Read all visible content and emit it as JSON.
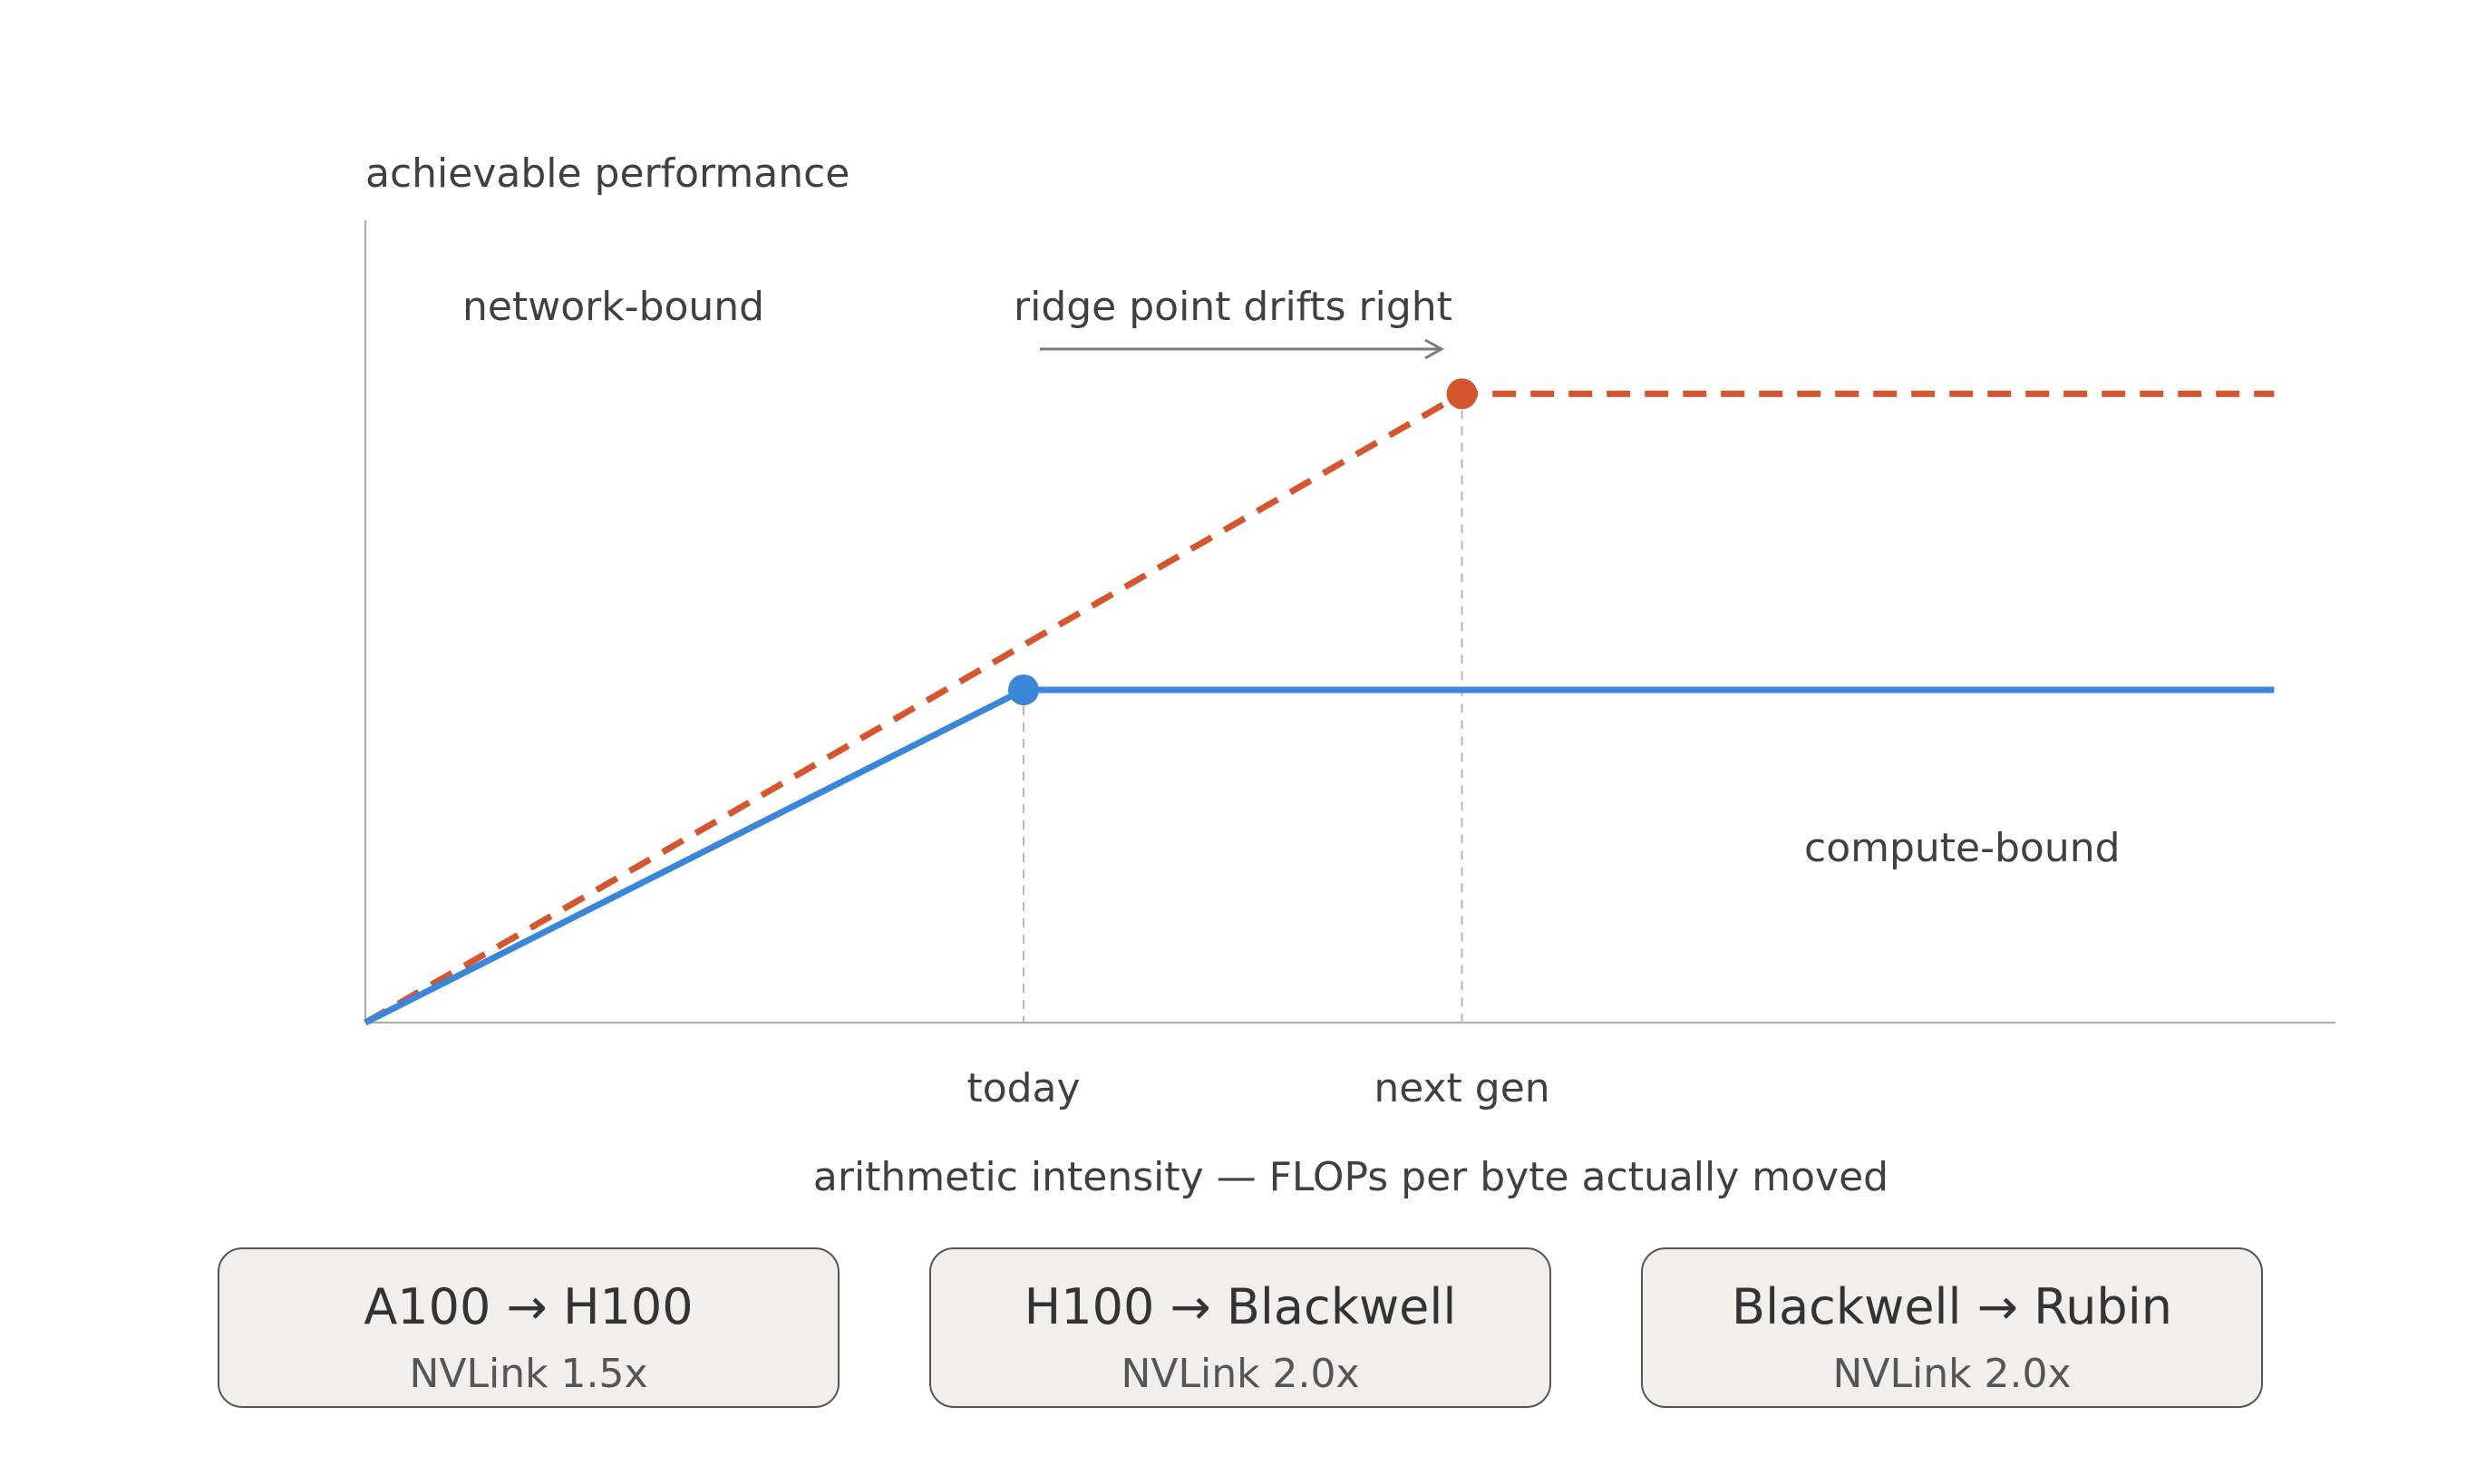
{
  "chart_data": {
    "type": "line",
    "ylabel": "achievable performance",
    "xlabel": "arithmetic intensity — FLOPs per byte actually moved",
    "x_ticks": [
      "today",
      "next gen"
    ],
    "annotations": {
      "network_bound": "network-bound",
      "compute_bound": "compute-bound",
      "ridge_drift": "ridge point drifts right"
    },
    "series": [
      {
        "style": "solid",
        "color": "#3a86d8",
        "ridge_x": 1,
        "ceiling": 1,
        "x_end": 2.9
      },
      {
        "style": "dashed",
        "color": "#d4552e",
        "ridge_x": 1.666,
        "ceiling": 1.89,
        "x_end": 2.9
      }
    ],
    "xlim": [
      0,
      3.0
    ],
    "ylim": [
      0,
      2.5
    ],
    "grid": false
  },
  "cards": [
    {
      "title": "A100 → H100",
      "subtitle": "NVLink 1.5x"
    },
    {
      "title": "H100 → Blackwell",
      "subtitle": "NVLink 2.0x"
    },
    {
      "title": "Blackwell → Rubin",
      "subtitle": "NVLink 2.0x"
    }
  ],
  "colors": {
    "axis": "#aaaaaa",
    "text": "#404040",
    "card_bg": "#f1efe9",
    "card_border": "#555555",
    "guide": "#b8b8b8",
    "arrow": "#7a7a7a"
  }
}
